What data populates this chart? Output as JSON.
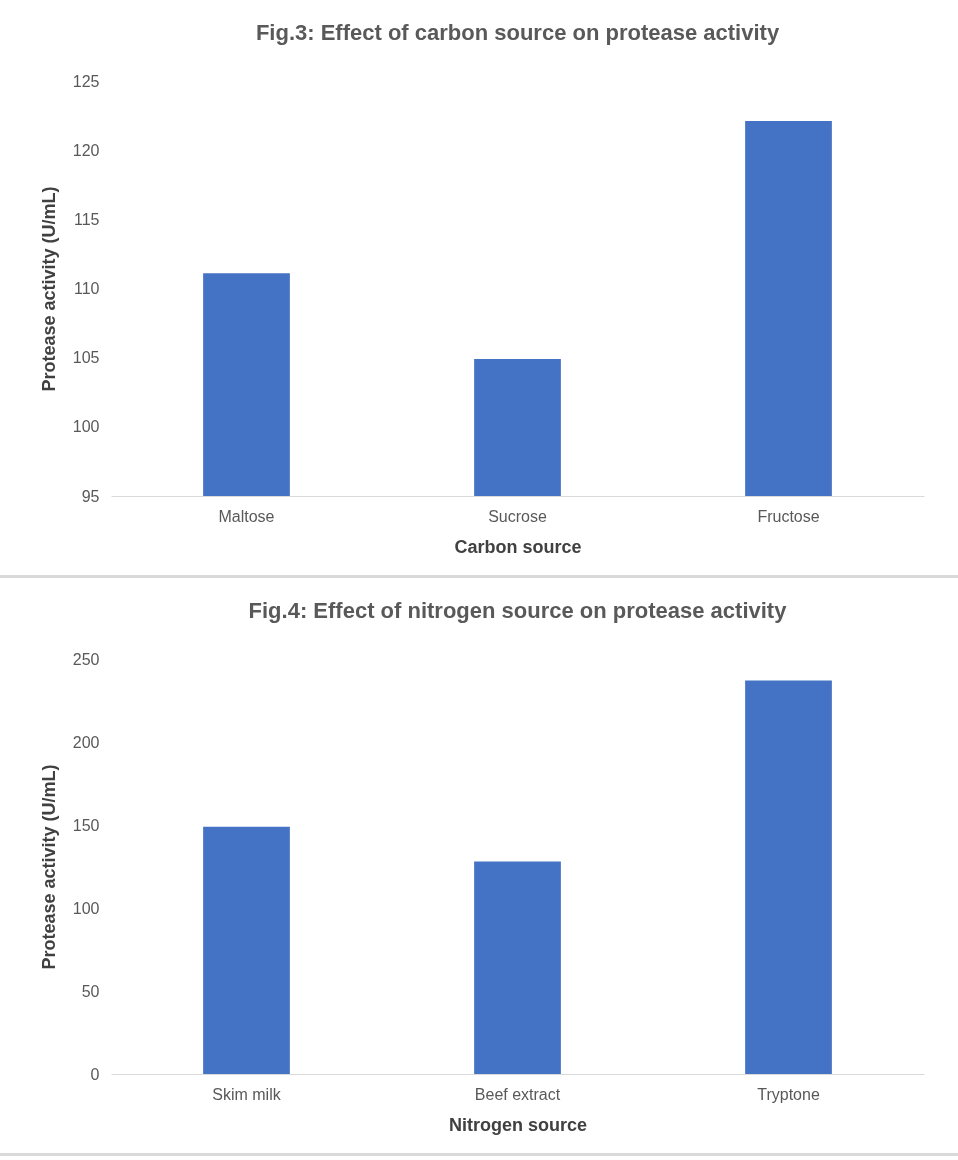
{
  "chart_data": [
    {
      "type": "bar",
      "title": "Fig.3: Effect of carbon source on protease activity",
      "xlabel": "Carbon source",
      "ylabel": "Protease activity (U/mL)",
      "categories": [
        "Maltose",
        "Sucrose",
        "Fructose"
      ],
      "values": [
        111.1,
        104.9,
        122.1
      ],
      "color": "#4472c4",
      "ylim": [
        95,
        125
      ],
      "yticks": [
        95,
        100,
        105,
        110,
        115,
        120,
        125
      ]
    },
    {
      "type": "bar",
      "title": "Fig.4: Effect of nitrogen source on protease activity",
      "xlabel": "Nitrogen source",
      "ylabel": "Protease activity (U/mL)",
      "categories": [
        "Skim milk",
        "Beef extract",
        "Tryptone"
      ],
      "values": [
        149,
        128,
        237
      ],
      "color": "#4472c4",
      "ylim": [
        0,
        250
      ],
      "yticks": [
        0,
        50,
        100,
        150,
        200,
        250
      ]
    }
  ]
}
